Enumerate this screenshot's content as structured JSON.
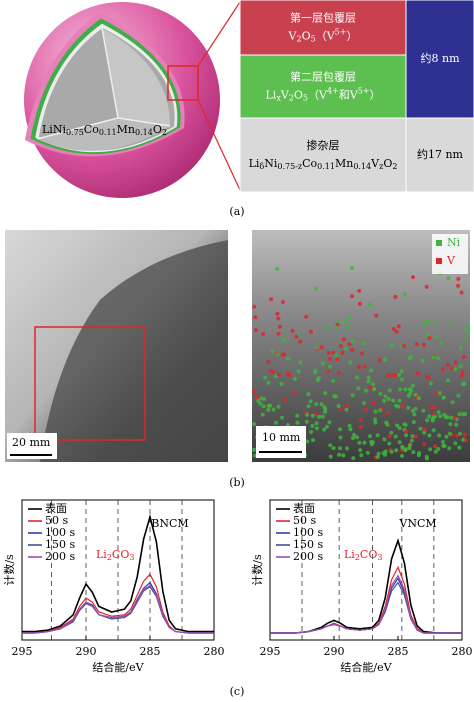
{
  "panel_a": {
    "core_formula": [
      {
        "text": "LiNi"
      },
      {
        "sub": "0.75"
      },
      {
        "text": "Co"
      },
      {
        "sub": "0.11"
      },
      {
        "text": "Mn"
      },
      {
        "sub": "0.14"
      },
      {
        "text": "O"
      },
      {
        "sub": "2"
      }
    ],
    "layers": [
      {
        "title": "第一层包覆层",
        "color": "#c9414f",
        "text_color": "#ffffff",
        "formula": [
          {
            "text": "V"
          },
          {
            "sub": "2"
          },
          {
            "text": "O"
          },
          {
            "sub": "5"
          },
          {
            "text": "（V"
          },
          {
            "sup": "5+"
          },
          {
            "text": "）"
          }
        ]
      },
      {
        "title": "第二层包覆层",
        "color": "#5cbf4f",
        "text_color": "#ffffff",
        "formula": [
          {
            "text": "Li"
          },
          {
            "sub": "x"
          },
          {
            "text": "V"
          },
          {
            "sub": "2"
          },
          {
            "text": "O"
          },
          {
            "sub": "5"
          },
          {
            "text": "（V"
          },
          {
            "sup": "4+"
          },
          {
            "text": "和V"
          },
          {
            "sup": "5+"
          },
          {
            "text": "）"
          }
        ]
      },
      {
        "title": "掺杂层",
        "color": "#d9d9d9",
        "text_color": "#000000",
        "formula": [
          {
            "text": "Li"
          },
          {
            "sub": "δ"
          },
          {
            "text": "Ni"
          },
          {
            "sub": "0.75-z"
          },
          {
            "text": "Co"
          },
          {
            "sub": "0.11"
          },
          {
            "text": "Mn"
          },
          {
            "sub": "0.14"
          },
          {
            "text": "V"
          },
          {
            "sub": "z"
          },
          {
            "text": "O"
          },
          {
            "sub": "2"
          }
        ]
      }
    ],
    "thicknesses": [
      {
        "label": "约8 nm",
        "color": "#2e3192",
        "text_color": "#ffffff"
      },
      {
        "label": "约17 nm",
        "color": "#d9d9d9",
        "text_color": "#000000"
      }
    ],
    "caption": "(a)"
  },
  "panel_b": {
    "scale_bars": [
      "20 mm",
      "10 mm"
    ],
    "legend": [
      {
        "name": "Ni",
        "color": "#3db53d"
      },
      {
        "name": "V",
        "color": "#e0262b"
      }
    ],
    "caption": "(b)"
  },
  "chart_data": [
    {
      "type": "line",
      "label": "BNCM",
      "xlabel": "结合能/eV",
      "ylabel": "计数/s",
      "annotation": [
        {
          "text": "Li"
        },
        {
          "sub": "2"
        },
        {
          "text": "CO"
        },
        {
          "sub": "3"
        }
      ],
      "annotation_color": "#e0262b",
      "xlim": [
        295,
        280
      ],
      "xticks": [
        295,
        290,
        285,
        280
      ],
      "ylim": [
        0,
        100
      ],
      "vlines": [
        292.7,
        290,
        287.5,
        285,
        282.5
      ],
      "x": [
        295,
        294,
        293,
        292,
        291,
        290.5,
        290,
        289.5,
        289,
        288,
        287,
        286.5,
        286,
        285.5,
        285,
        284.5,
        284,
        283.5,
        283,
        282,
        281,
        280
      ],
      "series": [
        {
          "name": "表面",
          "color": "#000000",
          "values": [
            6,
            6,
            7,
            10,
            18,
            30,
            40,
            34,
            24,
            20,
            22,
            28,
            45,
            72,
            88,
            70,
            35,
            14,
            8,
            6,
            6,
            6
          ]
        },
        {
          "name": "50 s",
          "color": "#e0262b",
          "values": [
            5,
            5,
            6,
            9,
            15,
            24,
            30,
            27,
            20,
            17,
            18,
            22,
            32,
            42,
            47,
            38,
            20,
            10,
            6,
            5,
            5,
            5
          ]
        },
        {
          "name": "100 s",
          "color": "#2b3fb5",
          "values": [
            5,
            5,
            6,
            8,
            14,
            22,
            27,
            25,
            18,
            16,
            17,
            20,
            29,
            37,
            41,
            33,
            18,
            9,
            6,
            5,
            5,
            5
          ]
        },
        {
          "name": "150 s",
          "color": "#4a4f8c",
          "values": [
            5,
            5,
            6,
            8,
            13,
            21,
            26,
            24,
            18,
            15,
            16,
            19,
            27,
            35,
            38,
            31,
            17,
            9,
            6,
            5,
            5,
            5
          ]
        },
        {
          "name": "200 s",
          "color": "#9a4fb0",
          "values": [
            5,
            5,
            6,
            8,
            14,
            22,
            27,
            24,
            18,
            16,
            17,
            20,
            28,
            36,
            39,
            32,
            18,
            9,
            6,
            5,
            5,
            5
          ]
        }
      ]
    },
    {
      "type": "line",
      "label": "VNCM",
      "xlabel": "结合能/eV",
      "ylabel": "计数/s",
      "annotation": [
        {
          "text": "Li"
        },
        {
          "sub": "2"
        },
        {
          "text": "CO"
        },
        {
          "sub": "3"
        }
      ],
      "annotation_color": "#e0262b",
      "xlim": [
        295,
        280
      ],
      "xticks": [
        295,
        290,
        285,
        280
      ],
      "ylim": [
        0,
        100
      ],
      "vlines": [
        292.5,
        289.6,
        287,
        284.7,
        282.2
      ],
      "x": [
        295,
        294,
        293,
        292,
        291,
        290.5,
        290,
        289.5,
        289,
        288,
        287,
        286.5,
        286,
        285.5,
        285,
        284.5,
        284,
        283.5,
        283,
        282,
        281,
        280
      ],
      "series": [
        {
          "name": "表面",
          "color": "#000000",
          "values": [
            5,
            5,
            5,
            6,
            9,
            12,
            14,
            12,
            9,
            8,
            9,
            14,
            30,
            58,
            71,
            55,
            25,
            10,
            6,
            5,
            5,
            5
          ]
        },
        {
          "name": "50 s",
          "color": "#e0262b",
          "values": [
            5,
            5,
            5,
            6,
            8,
            10,
            12,
            10,
            8,
            7,
            8,
            12,
            24,
            43,
            52,
            40,
            18,
            8,
            5,
            5,
            5,
            5
          ]
        },
        {
          "name": "100 s",
          "color": "#2b3fb5",
          "values": [
            5,
            5,
            5,
            6,
            8,
            10,
            11,
            10,
            8,
            7,
            8,
            11,
            21,
            37,
            44,
            34,
            16,
            7,
            5,
            5,
            5,
            5
          ]
        },
        {
          "name": "150 s",
          "color": "#4a4f8c",
          "values": [
            5,
            5,
            5,
            6,
            8,
            10,
            11,
            10,
            8,
            7,
            8,
            11,
            20,
            35,
            41,
            32,
            15,
            7,
            5,
            5,
            5,
            5
          ]
        },
        {
          "name": "200 s",
          "color": "#9a4fb0",
          "values": [
            5,
            5,
            5,
            6,
            8,
            10,
            11,
            10,
            8,
            7,
            8,
            11,
            22,
            39,
            46,
            36,
            16,
            7,
            5,
            5,
            5,
            5
          ]
        }
      ]
    }
  ],
  "caption_c": "(c)"
}
